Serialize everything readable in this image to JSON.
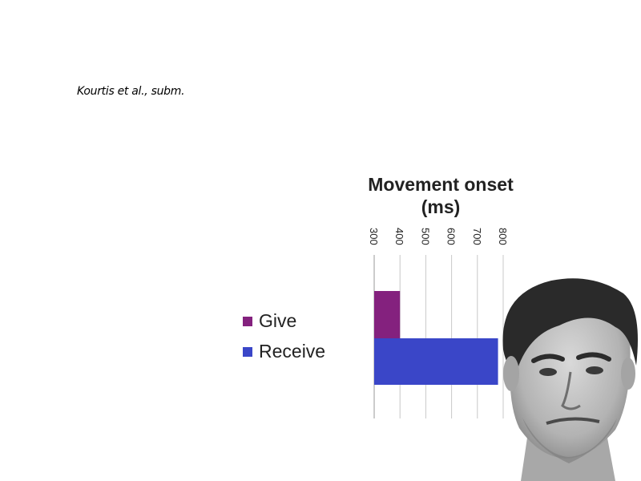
{
  "citation": "Kourtis et al., subm.",
  "colors": {
    "give": "#84217e",
    "receive": "#3a46c8",
    "grid": "#c8c8c8",
    "axis": "#9a9a9a"
  },
  "photo": {
    "icon": "portrait-photo"
  },
  "chart_data": {
    "type": "bar",
    "orientation": "horizontal",
    "title": "Movement onset (ms)",
    "title_lines": [
      "Movement onset",
      "(ms)"
    ],
    "xlabel": "",
    "ylabel": "",
    "xlim": [
      300,
      800
    ],
    "ticks": [
      300,
      400,
      500,
      600,
      700,
      800
    ],
    "tick_labels": [
      "300",
      "400",
      "500",
      "600",
      "700",
      "800"
    ],
    "tick_label_rotation": "vertical",
    "grid": true,
    "legend_position": "left",
    "series": [
      {
        "name": "Give",
        "value": 400,
        "color": "#84217e"
      },
      {
        "name": "Receive",
        "value": 780,
        "color": "#3a46c8"
      }
    ]
  }
}
